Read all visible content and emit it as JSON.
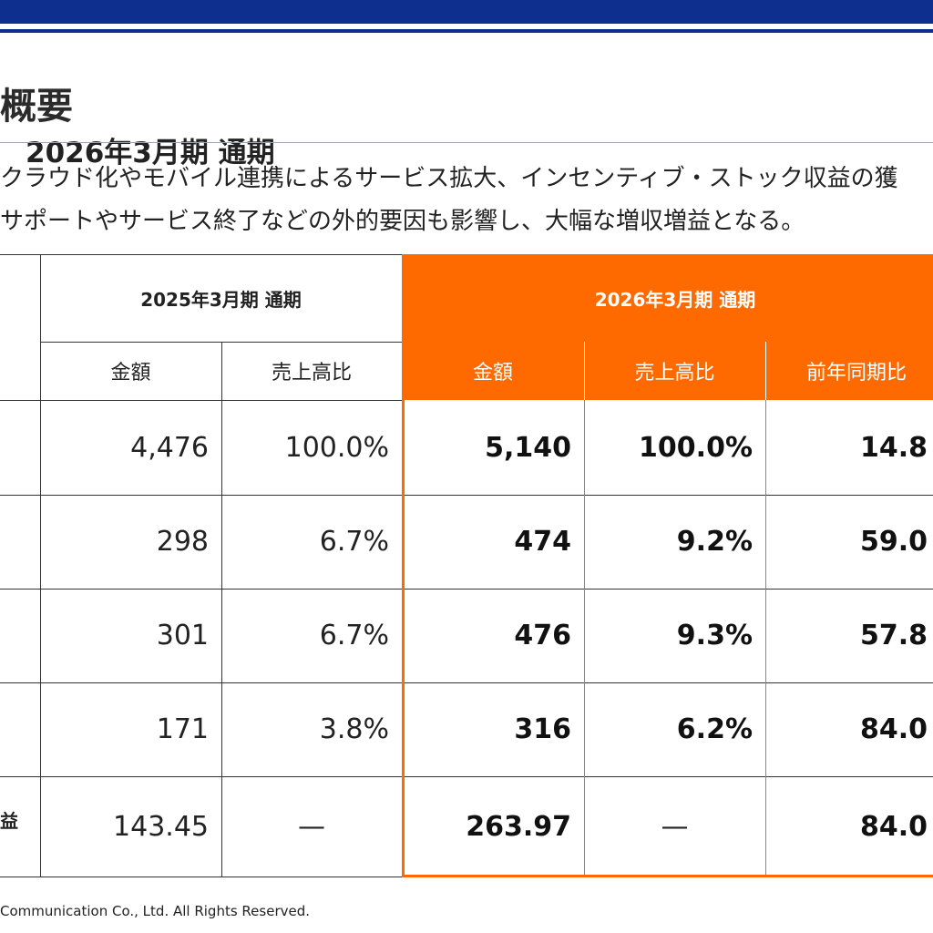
{
  "header": {
    "title": "概要",
    "period": "2026年3月期 通期"
  },
  "description": {
    "line1": "クラウド化やモバイル連携によるサービス拡大、インセンティブ・ストック収益の獲",
    "line2": "サポートやサービス終了などの外的要因も影響し、大幅な増収増益となる。"
  },
  "table": {
    "prev_period": "2025年3月期 通期",
    "curr_period": "2026年3月期 通期",
    "col_amount": "金額",
    "col_ratio": "売上高比",
    "col_yoy": "前年同期比",
    "rows": [
      {
        "label": "",
        "prev_amount": "4,476",
        "prev_ratio": "100.0%",
        "curr_amount": "5,140",
        "curr_ratio": "100.0%",
        "yoy": "14.8"
      },
      {
        "label": "",
        "prev_amount": "298",
        "prev_ratio": "6.7%",
        "curr_amount": "474",
        "curr_ratio": "9.2%",
        "yoy": "59.0"
      },
      {
        "label": "",
        "prev_amount": "301",
        "prev_ratio": "6.7%",
        "curr_amount": "476",
        "curr_ratio": "9.3%",
        "yoy": "57.8"
      },
      {
        "label": "",
        "prev_amount": "171",
        "prev_ratio": "3.8%",
        "curr_amount": "316",
        "curr_ratio": "6.2%",
        "yoy": "84.0"
      },
      {
        "label": "益",
        "prev_amount": "143.45",
        "prev_ratio": "—",
        "curr_amount": "263.97",
        "curr_ratio": "—",
        "yoy": "84.0"
      }
    ]
  },
  "footer": {
    "copyright": "Communication Co., Ltd. All Rights Reserved."
  },
  "colors": {
    "brand_blue": "#0f2f8f",
    "accent_orange": "#ff6a00"
  }
}
